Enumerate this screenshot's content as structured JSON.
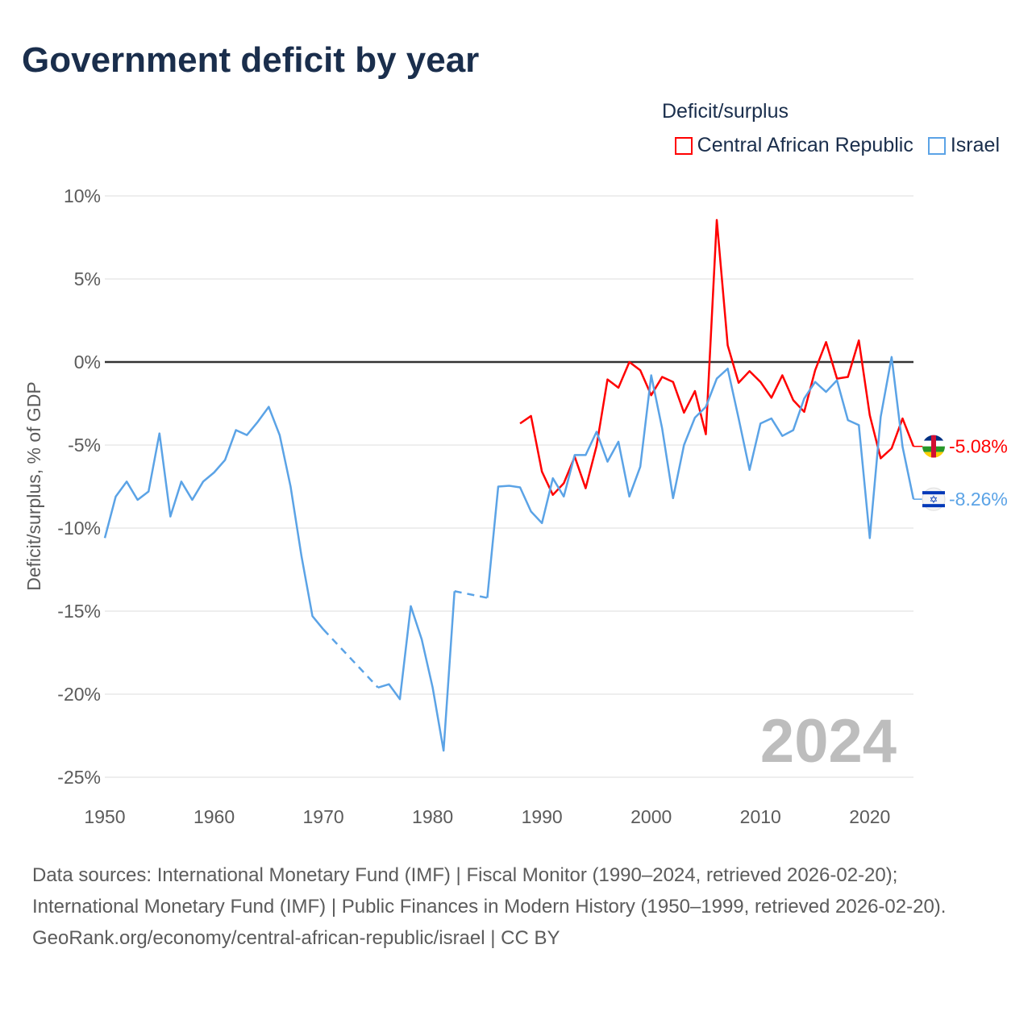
{
  "title": "Government deficit by year",
  "legend": {
    "title": "Deficit/surplus",
    "items": [
      {
        "label": "Central African Republic",
        "color": "#ff0000"
      },
      {
        "label": "Israel",
        "color": "#5ba3e6"
      }
    ]
  },
  "year_overlay": "2024",
  "footer": {
    "sources": "Data sources: International Monetary Fund (IMF) | Fiscal Monitor (1990–2024, retrieved 2026-02-20); International Monetary Fund (IMF) | Public Finances in Modern History (1950–1999, retrieved 2026-02-20).",
    "credit": "GeoRank.org/economy/central-african-republic/israel | CC BY"
  },
  "chart_data": {
    "type": "line",
    "title": "Government deficit by year",
    "xlabel": "",
    "ylabel": "Deficit/surplus, % of GDP",
    "xlim": [
      1950,
      2024
    ],
    "ylim": [
      -25,
      10
    ],
    "x_ticks": [
      1950,
      1960,
      1970,
      1980,
      1990,
      2000,
      2010,
      2020
    ],
    "x_tick_labels": [
      "1950",
      "1960",
      "1970",
      "1980",
      "1990",
      "2000",
      "2010",
      "2020"
    ],
    "y_ticks": [
      10,
      5,
      0,
      -5,
      -10,
      -15,
      -20,
      -25
    ],
    "y_tick_labels": [
      "10%",
      "5%",
      "0%",
      "-5%",
      "-10%",
      "-15%",
      "-20%",
      "-25%"
    ],
    "grid": true,
    "legend_position": "top-right",
    "series": [
      {
        "name": "Central African Republic",
        "color": "#ff0000",
        "end_label": "-5.08%",
        "flag": "central-african-republic",
        "x": [
          1988,
          1989,
          1990,
          1991,
          1992,
          1993,
          1994,
          1995,
          1996,
          1997,
          1998,
          1999,
          2000,
          2001,
          2002,
          2003,
          2004,
          2005,
          2006,
          2007,
          2008,
          2009,
          2010,
          2011,
          2012,
          2013,
          2014,
          2015,
          2016,
          2017,
          2018,
          2019,
          2020,
          2021,
          2022,
          2023,
          2024
        ],
        "values": [
          -3.7,
          -3.25,
          -6.6,
          -8.0,
          -7.3,
          -5.7,
          -7.6,
          -5.05,
          -1.05,
          -1.55,
          0.0,
          -0.5,
          -2.0,
          -0.9,
          -1.2,
          -3.05,
          -1.75,
          -4.35,
          8.55,
          1.0,
          -1.25,
          -0.55,
          -1.2,
          -2.15,
          -0.8,
          -2.3,
          -3.0,
          -0.5,
          1.2,
          -1.0,
          -0.9,
          1.3,
          -3.2,
          -5.8,
          -5.2,
          -3.4,
          -5.08
        ]
      },
      {
        "name": "Israel",
        "color": "#5ba3e6",
        "end_label": "-8.26%",
        "flag": "israel",
        "x": [
          1950,
          1951,
          1952,
          1953,
          1954,
          1955,
          1956,
          1957,
          1958,
          1959,
          1960,
          1961,
          1962,
          1963,
          1964,
          1965,
          1966,
          1967,
          1968,
          1969,
          1970,
          1975,
          1976,
          1977,
          1978,
          1979,
          1980,
          1981,
          1982,
          1985,
          1986,
          1987,
          1988,
          1989,
          1990,
          1991,
          1992,
          1993,
          1994,
          1995,
          1996,
          1997,
          1998,
          1999,
          2000,
          2001,
          2002,
          2003,
          2004,
          2005,
          2006,
          2007,
          2008,
          2009,
          2010,
          2011,
          2012,
          2013,
          2014,
          2015,
          2016,
          2017,
          2018,
          2019,
          2020,
          2021,
          2022,
          2023,
          2024
        ],
        "values": [
          -10.6,
          -8.1,
          -7.2,
          -8.3,
          -7.8,
          -4.3,
          -9.3,
          -7.2,
          -8.3,
          -7.2,
          -6.65,
          -5.9,
          -4.1,
          -4.4,
          -3.6,
          -2.7,
          -4.4,
          -7.5,
          -11.7,
          -15.3,
          -16.1,
          -19.6,
          -19.4,
          -20.3,
          -14.7,
          -16.7,
          -19.6,
          -23.4,
          -13.8,
          -14.2,
          -7.5,
          -7.45,
          -7.55,
          -9.0,
          -9.7,
          -7.0,
          -8.1,
          -5.6,
          -5.6,
          -4.2,
          -6.0,
          -4.8,
          -8.1,
          -6.3,
          -0.8,
          -4.0,
          -8.2,
          -5.0,
          -3.35,
          -2.7,
          -1.0,
          -0.4,
          -3.4,
          -6.5,
          -3.7,
          -3.4,
          -4.45,
          -4.1,
          -2.2,
          -1.2,
          -1.8,
          -1.1,
          -3.5,
          -3.8,
          -10.6,
          -3.3,
          0.3,
          -5.1,
          -8.26
        ]
      }
    ]
  }
}
